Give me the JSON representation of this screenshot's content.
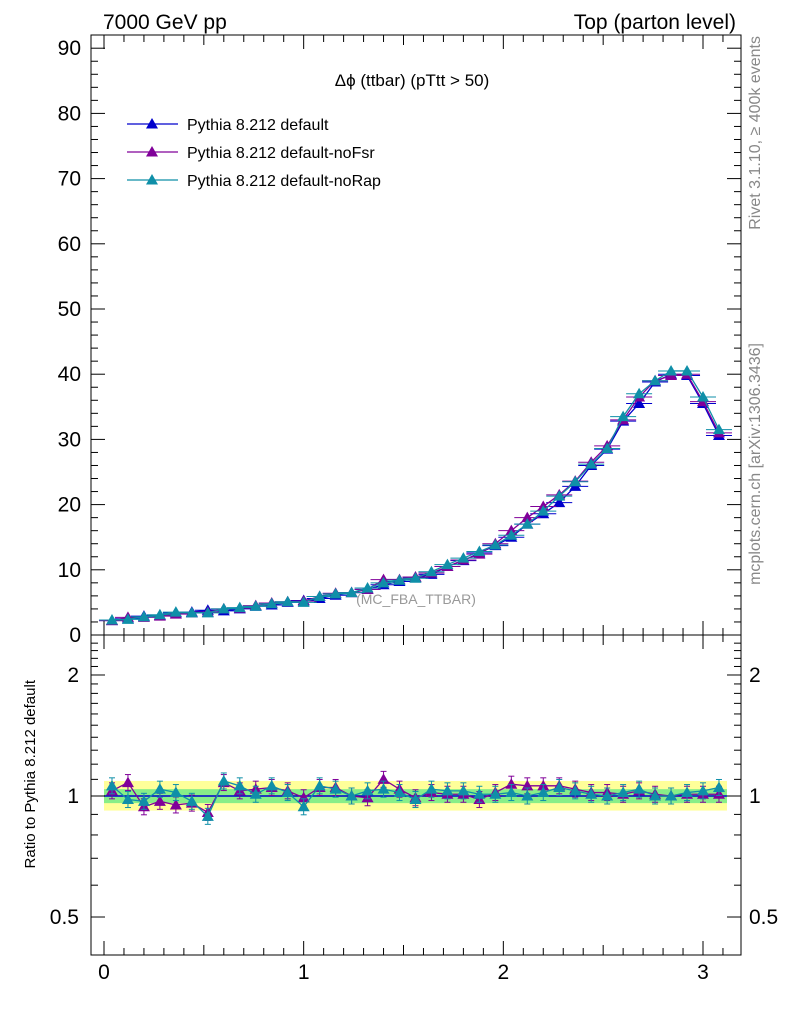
{
  "header": {
    "left": "7000 GeV pp",
    "right": "Top (parton level)"
  },
  "side_text": {
    "rivet": "Rivet 3.1.10, ≥ 400k events",
    "mcplots": "mcplots.cern.ch [arXiv:1306.3436]"
  },
  "plot_title": "Δϕ (ttbar) (pTtt > 50)",
  "watermark": "(MC_FBA_TTBAR)",
  "ratio_ylabel": "Ratio to Pythia 8.212 default",
  "colors": {
    "default": "#0000cc",
    "noFsr": "#800099",
    "noRap": "#0f8fa8",
    "band_outer": "#ffff99",
    "band_inner": "#88ee88"
  },
  "chart_data": [
    {
      "type": "line",
      "panel": "main",
      "title": "Δϕ (ttbar) (pTtt > 50)",
      "ylim": [
        0,
        92
      ],
      "xlim": [
        -0.06,
        3.2
      ],
      "yticks": [
        0,
        10,
        20,
        30,
        40,
        50,
        60,
        70,
        80,
        90
      ],
      "ytick_labels": [
        "0",
        "10",
        "20",
        "30",
        "40",
        "50",
        "60",
        "70",
        "80",
        "90"
      ],
      "legend_position": "top-left",
      "x": [
        0.04,
        0.12,
        0.2,
        0.28,
        0.36,
        0.44,
        0.52,
        0.6,
        0.68,
        0.76,
        0.84,
        0.92,
        1.0,
        1.08,
        1.16,
        1.24,
        1.32,
        1.4,
        1.48,
        1.56,
        1.64,
        1.72,
        1.8,
        1.88,
        1.96,
        2.04,
        2.12,
        2.2,
        2.28,
        2.36,
        2.44,
        2.52,
        2.6,
        2.68,
        2.76,
        2.84,
        2.92,
        3.0,
        3.08
      ],
      "series": [
        {
          "name": "Pythia 8.212 default",
          "color": "#0000cc",
          "values": [
            2.2,
            2.5,
            2.9,
            3.0,
            3.4,
            3.5,
            3.8,
            3.7,
            4.0,
            4.4,
            4.6,
            5.0,
            5.3,
            5.6,
            6.1,
            6.5,
            7.0,
            7.7,
            8.2,
            8.8,
            9.3,
            10.5,
            11.4,
            12.6,
            13.7,
            15.0,
            17.0,
            18.6,
            20.3,
            22.8,
            26.0,
            28.5,
            32.8,
            35.5,
            38.8,
            40.0,
            39.8,
            35.5,
            30.6
          ]
        },
        {
          "name": "Pythia 8.212 default-noFsr",
          "color": "#800099",
          "values": [
            2.2,
            2.7,
            2.7,
            2.9,
            3.2,
            3.4,
            3.5,
            4.0,
            4.1,
            4.5,
            4.9,
            5.1,
            5.2,
            5.9,
            6.4,
            6.5,
            7.0,
            8.5,
            8.5,
            8.9,
            9.5,
            10.5,
            11.5,
            12.4,
            14.0,
            16.0,
            18.0,
            19.7,
            21.5,
            23.6,
            26.5,
            29.0,
            33.0,
            36.5,
            39.0,
            39.8,
            40.0,
            35.8,
            31.0
          ]
        },
        {
          "name": "Pythia 8.212 default-noRap",
          "color": "#0f8fa8",
          "values": [
            2.3,
            2.4,
            2.8,
            3.1,
            3.5,
            3.4,
            3.4,
            4.0,
            4.2,
            4.4,
            4.8,
            5.1,
            5.0,
            5.9,
            6.3,
            6.5,
            7.2,
            8.0,
            8.4,
            8.7,
            9.7,
            10.8,
            11.8,
            12.8,
            13.8,
            15.3,
            17.0,
            19.0,
            21.3,
            23.5,
            26.2,
            28.6,
            33.5,
            37.0,
            39.0,
            40.5,
            40.5,
            36.5,
            31.5
          ]
        }
      ]
    },
    {
      "type": "line",
      "panel": "ratio",
      "ylabel": "Ratio to Pythia 8.212 default",
      "xlabel": "",
      "ylim": [
        0.41,
        2.5
      ],
      "xlim": [
        -0.06,
        3.2
      ],
      "yscale": "log",
      "yticks": [
        0.5,
        1,
        2
      ],
      "ytick_labels": [
        "0.5",
        "1",
        "2"
      ],
      "xticks": [
        0,
        1,
        2,
        3
      ],
      "xtick_labels": [
        "0",
        "1",
        "2",
        "3"
      ],
      "x": [
        0.04,
        0.12,
        0.2,
        0.28,
        0.36,
        0.44,
        0.52,
        0.6,
        0.68,
        0.76,
        0.84,
        0.92,
        1.0,
        1.08,
        1.16,
        1.24,
        1.32,
        1.4,
        1.48,
        1.56,
        1.64,
        1.72,
        1.8,
        1.88,
        1.96,
        2.04,
        2.12,
        2.2,
        2.28,
        2.36,
        2.44,
        2.52,
        2.6,
        2.68,
        2.76,
        2.84,
        2.92,
        3.0,
        3.08
      ],
      "band": {
        "outer_lower": 0.92,
        "outer_upper": 1.09,
        "inner_lower": 0.96,
        "inner_upper": 1.04
      },
      "series": [
        {
          "name": "Pythia 8.212 default-noFsr",
          "color": "#800099",
          "values": [
            1.03,
            1.08,
            0.94,
            0.97,
            0.95,
            0.96,
            0.91,
            1.08,
            1.03,
            1.04,
            1.05,
            1.03,
            0.99,
            1.05,
            1.05,
            1.0,
            0.99,
            1.1,
            1.04,
            0.99,
            1.02,
            1.01,
            1.01,
            0.98,
            1.02,
            1.07,
            1.06,
            1.06,
            1.06,
            1.04,
            1.02,
            1.02,
            1.01,
            1.03,
            1.01,
            1.0,
            1.01,
            1.01,
            1.01
          ]
        },
        {
          "name": "Pythia 8.212 default-noRap",
          "color": "#0f8fa8",
          "values": [
            1.06,
            0.98,
            0.97,
            1.04,
            1.02,
            0.97,
            0.89,
            1.09,
            1.06,
            1.01,
            1.06,
            1.02,
            0.94,
            1.06,
            1.04,
            1.0,
            1.03,
            1.04,
            1.02,
            0.98,
            1.04,
            1.03,
            1.03,
            1.01,
            1.01,
            1.02,
            1.0,
            1.02,
            1.05,
            1.03,
            1.01,
            1.0,
            1.02,
            1.04,
            1.0,
            1.0,
            1.02,
            1.03,
            1.05
          ]
        }
      ]
    }
  ]
}
